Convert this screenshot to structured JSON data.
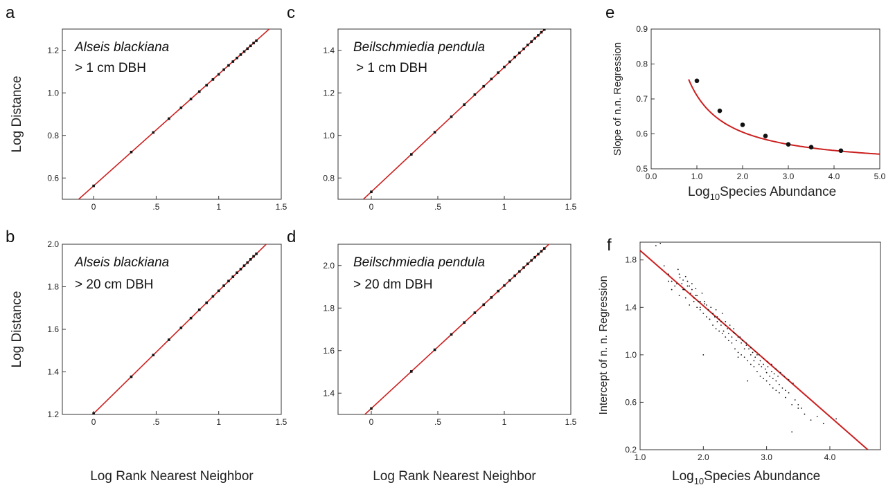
{
  "panels": {
    "a": {
      "letter": "a",
      "annot1": "Alseis blackiana",
      "annot2": "> 1 cm DBH"
    },
    "b": {
      "letter": "b",
      "annot1": "Alseis blackiana",
      "annot2": "> 20 cm DBH"
    },
    "c": {
      "letter": "c",
      "annot1": "Beilschmiedia pendula",
      "annot2": "> 1 cm DBH"
    },
    "d": {
      "letter": "d",
      "annot1": "Beilschmiedia pendula",
      "annot2": "> 20 dm DBH"
    },
    "e": {
      "letter": "e"
    },
    "f": {
      "letter": "f"
    }
  },
  "colors": {
    "fit_line": "#cc1f1f",
    "points": "#111111",
    "frame": "#333333"
  },
  "chart_data": [
    {
      "id": "a",
      "type": "scatter",
      "xlabel": "",
      "ylabel": "Log Distance",
      "xlim": [
        -0.25,
        1.5
      ],
      "ylim": [
        0.5,
        1.3
      ],
      "xticks": [
        0,
        0.5,
        1,
        1.5
      ],
      "xticklabels": [
        "0",
        ".5",
        "1",
        "1.5"
      ],
      "yticks": [
        0.6,
        0.8,
        1.0,
        1.2
      ],
      "yticklabels": [
        "0.6",
        "0.8",
        "1.0",
        "1.2"
      ],
      "points": {
        "x": [
          0,
          0.301,
          0.477,
          0.602,
          0.699,
          0.778,
          0.845,
          0.903,
          0.954,
          1.0,
          1.041,
          1.079,
          1.114,
          1.146,
          1.176,
          1.204,
          1.23,
          1.255,
          1.279,
          1.301
        ],
        "y": [
          0.563,
          0.722,
          0.814,
          0.879,
          0.93,
          0.971,
          1.006,
          1.036,
          1.063,
          1.087,
          1.109,
          1.129,
          1.147,
          1.164,
          1.18,
          1.194,
          1.208,
          1.221,
          1.234,
          1.245
        ]
      },
      "fit": {
        "slope": 0.525,
        "intercept": 0.563
      }
    },
    {
      "id": "b",
      "type": "scatter",
      "xlabel": "Log Rank Nearest Neighbor",
      "ylabel": "Log Distance",
      "xlim": [
        -0.25,
        1.5
      ],
      "ylim": [
        1.2,
        2.0
      ],
      "xticks": [
        0,
        0.5,
        1,
        1.5
      ],
      "xticklabels": [
        "0",
        ".5",
        "1",
        "1.5"
      ],
      "yticks": [
        1.2,
        1.4,
        1.6,
        1.8,
        2.0
      ],
      "yticklabels": [
        "1.2",
        "1.4",
        "1.6",
        "1.8",
        "2.0"
      ],
      "points": {
        "x": [
          0,
          0.301,
          0.477,
          0.602,
          0.699,
          0.778,
          0.845,
          0.903,
          0.954,
          1.0,
          1.041,
          1.079,
          1.114,
          1.146,
          1.176,
          1.204,
          1.23,
          1.255,
          1.279,
          1.301
        ],
        "y": [
          1.204,
          1.377,
          1.479,
          1.551,
          1.607,
          1.653,
          1.692,
          1.725,
          1.755,
          1.781,
          1.805,
          1.827,
          1.847,
          1.866,
          1.883,
          1.899,
          1.914,
          1.929,
          1.943,
          1.955
        ]
      },
      "fit": {
        "slope": 0.577,
        "intercept": 1.204
      }
    },
    {
      "id": "c",
      "type": "scatter",
      "xlabel": "",
      "ylabel": "",
      "xlim": [
        -0.25,
        1.5
      ],
      "ylim": [
        0.7,
        1.5
      ],
      "xticks": [
        0,
        0.5,
        1,
        1.5
      ],
      "xticklabels": [
        "0",
        ".5",
        "1",
        "1.5"
      ],
      "yticks": [
        0.8,
        1.0,
        1.2,
        1.4
      ],
      "yticklabels": [
        "0.8",
        "1.0",
        "1.2",
        "1.4"
      ],
      "points": {
        "x": [
          0,
          0.301,
          0.477,
          0.602,
          0.699,
          0.778,
          0.845,
          0.903,
          0.954,
          1.0,
          1.041,
          1.079,
          1.114,
          1.146,
          1.176,
          1.204,
          1.23,
          1.255,
          1.279,
          1.301
        ],
        "y": [
          0.735,
          0.911,
          1.015,
          1.088,
          1.145,
          1.192,
          1.231,
          1.265,
          1.295,
          1.322,
          1.346,
          1.368,
          1.388,
          1.407,
          1.425,
          1.441,
          1.456,
          1.471,
          1.485,
          1.498
        ]
      },
      "fit": {
        "slope": 0.586,
        "intercept": 0.735
      }
    },
    {
      "id": "d",
      "type": "scatter",
      "xlabel": "Log Rank Nearest Neighbor",
      "ylabel": "",
      "xlim": [
        -0.25,
        1.5
      ],
      "ylim": [
        1.3,
        2.1
      ],
      "xticks": [
        0,
        0.5,
        1,
        1.5
      ],
      "xticklabels": [
        "0",
        ".5",
        "1",
        "1.5"
      ],
      "yticks": [
        1.4,
        1.6,
        1.8,
        2.0
      ],
      "yticklabels": [
        "1.4",
        "1.6",
        "1.8",
        "2.0"
      ],
      "points": {
        "x": [
          0,
          0.301,
          0.477,
          0.602,
          0.699,
          0.778,
          0.845,
          0.903,
          0.954,
          1.0,
          1.041,
          1.079,
          1.114,
          1.146,
          1.176,
          1.204,
          1.23,
          1.255,
          1.279,
          1.301
        ],
        "y": [
          1.328,
          1.502,
          1.604,
          1.676,
          1.732,
          1.778,
          1.816,
          1.85,
          1.88,
          1.906,
          1.93,
          1.952,
          1.972,
          1.99,
          2.008,
          2.024,
          2.039,
          2.053,
          2.067,
          2.08
        ]
      },
      "fit": {
        "slope": 0.578,
        "intercept": 1.328
      }
    },
    {
      "id": "e",
      "type": "scatter",
      "xlabel": "Log10Species Abundance",
      "ylabel": "Slope of  n.n. Regression",
      "xlim": [
        0,
        5
      ],
      "ylim": [
        0.5,
        0.9
      ],
      "xticks": [
        0,
        1,
        2,
        3,
        4,
        5
      ],
      "xticklabels": [
        "0.0",
        "1.0",
        "2.0",
        "3.0",
        "4.0",
        "5.0"
      ],
      "yticks": [
        0.5,
        0.6,
        0.7,
        0.8,
        0.9
      ],
      "yticklabels": [
        "0.5",
        "0.6",
        "0.7",
        "0.8",
        "0.9"
      ],
      "points": {
        "x": [
          1.0,
          1.5,
          2.0,
          2.5,
          3.0,
          3.5,
          4.15
        ],
        "y": [
          0.752,
          0.666,
          0.626,
          0.594,
          0.57,
          0.562,
          0.552
        ]
      },
      "curve": {
        "form": "a + b/x",
        "a": 0.5,
        "b": 0.21,
        "xstart": 0.82,
        "xend": 5.0
      }
    },
    {
      "id": "f",
      "type": "scatter",
      "xlabel": "Log10Species Abundance",
      "ylabel": "Intercept of n. n. Regression",
      "xlim": [
        1.0,
        4.8
      ],
      "ylim": [
        0.2,
        1.95
      ],
      "xticks": [
        1,
        2,
        3,
        4
      ],
      "xticklabels": [
        "1.0",
        "2.0",
        "3.0",
        "4.0"
      ],
      "yticks": [
        0.2,
        0.6,
        1.0,
        1.4,
        1.8
      ],
      "yticklabels": [
        "0.2",
        "0.6",
        "1.0",
        "1.4",
        "1.8"
      ],
      "points": {
        "x": [
          1.25,
          1.32,
          1.38,
          1.45,
          1.5,
          1.55,
          1.6,
          1.63,
          1.66,
          1.7,
          1.72,
          1.75,
          1.78,
          1.8,
          1.82,
          1.85,
          1.88,
          1.9,
          1.92,
          1.95,
          1.98,
          2.0,
          2.02,
          2.05,
          2.08,
          2.1,
          2.12,
          2.15,
          2.18,
          2.2,
          2.22,
          2.25,
          2.28,
          2.3,
          2.32,
          2.35,
          2.38,
          2.4,
          2.42,
          2.45,
          2.48,
          2.5,
          2.52,
          2.55,
          2.58,
          2.6,
          2.62,
          2.65,
          2.68,
          2.7,
          2.72,
          2.75,
          2.78,
          2.8,
          2.82,
          2.85,
          2.88,
          2.9,
          2.92,
          2.95,
          2.98,
          3.0,
          3.02,
          3.05,
          3.08,
          3.1,
          3.12,
          3.15,
          3.18,
          3.2,
          3.25,
          3.3,
          3.35,
          3.4,
          3.45,
          3.5,
          3.55,
          3.6,
          3.7,
          3.8,
          3.9,
          4.1,
          1.45,
          1.5,
          1.58,
          1.62,
          1.68,
          1.72,
          1.78,
          1.85,
          1.9,
          1.95,
          2.0,
          2.05,
          2.1,
          2.15,
          2.2,
          2.25,
          2.3,
          2.35,
          2.4,
          2.45,
          2.5,
          2.55,
          2.6,
          2.65,
          2.7,
          2.75,
          2.8,
          2.85,
          2.9,
          2.95,
          3.0,
          3.05,
          3.1,
          3.15,
          3.2,
          3.3,
          3.4,
          3.5,
          1.62,
          1.68,
          1.75,
          1.82,
          1.88,
          1.95,
          2.02,
          2.08,
          2.15,
          2.22,
          2.28,
          2.35,
          2.42,
          2.48,
          2.55,
          2.62,
          2.68,
          2.75,
          2.82,
          2.88,
          2.95,
          3.02,
          3.08,
          3.15,
          3.22,
          3.28,
          3.35,
          3.42
        ],
        "y": [
          1.92,
          1.94,
          1.75,
          1.68,
          1.62,
          1.58,
          1.72,
          1.65,
          1.6,
          1.55,
          1.66,
          1.62,
          1.58,
          1.52,
          1.6,
          1.48,
          1.56,
          1.5,
          1.45,
          1.4,
          1.52,
          1.0,
          1.45,
          1.42,
          1.38,
          1.3,
          1.4,
          1.35,
          1.32,
          1.38,
          1.28,
          1.3,
          1.25,
          1.35,
          1.2,
          1.28,
          1.22,
          1.18,
          1.25,
          1.15,
          1.22,
          1.18,
          1.12,
          0.98,
          1.15,
          1.1,
          1.12,
          1.05,
          1.08,
          0.78,
          1.05,
          1.0,
          1.02,
          0.95,
          0.98,
          1.0,
          0.92,
          0.95,
          0.9,
          0.92,
          0.88,
          0.85,
          0.9,
          0.82,
          0.86,
          0.8,
          0.84,
          0.78,
          0.82,
          0.75,
          0.72,
          0.7,
          0.68,
          0.35,
          0.62,
          0.58,
          0.55,
          0.5,
          0.45,
          0.48,
          0.42,
          0.46,
          1.62,
          1.55,
          1.6,
          1.5,
          1.55,
          1.48,
          1.42,
          1.45,
          1.4,
          1.38,
          1.35,
          1.32,
          1.3,
          1.25,
          1.22,
          1.2,
          1.18,
          1.15,
          1.12,
          1.1,
          1.05,
          1.02,
          1.0,
          0.98,
          0.95,
          0.92,
          0.9,
          0.86,
          0.82,
          0.8,
          0.78,
          0.75,
          0.72,
          0.7,
          0.68,
          0.64,
          0.58,
          0.55,
          1.68,
          1.63,
          1.58,
          1.55,
          1.5,
          1.45,
          1.43,
          1.38,
          1.35,
          1.32,
          1.28,
          1.25,
          1.22,
          1.19,
          1.15,
          1.12,
          1.1,
          1.06,
          1.03,
          1.0,
          0.97,
          0.94,
          0.92,
          0.88,
          0.85,
          0.82,
          0.79,
          0.76
        ]
      },
      "fit": {
        "x0": 1.0,
        "y0": 1.88,
        "x1": 4.6,
        "y1": 0.2
      }
    }
  ]
}
